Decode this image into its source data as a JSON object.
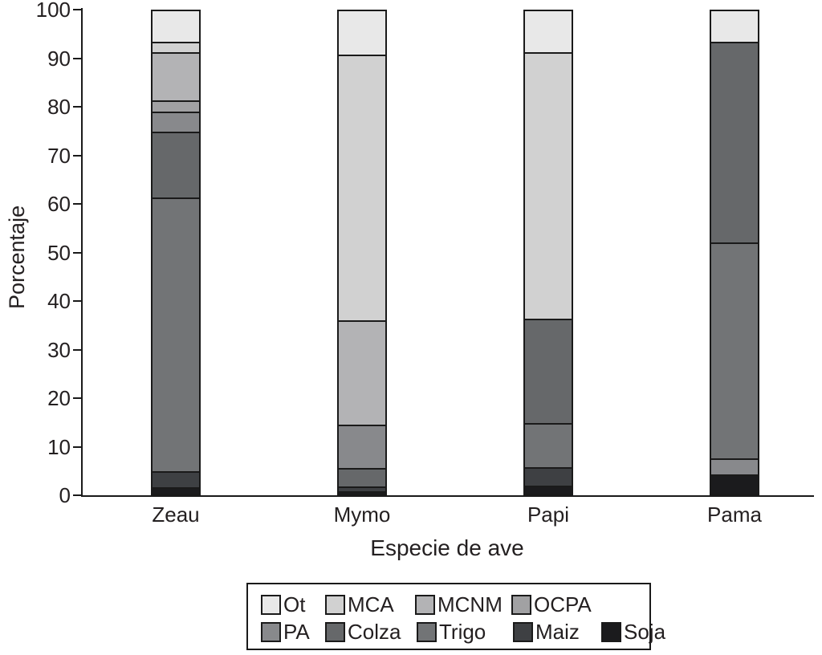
{
  "chart_data": {
    "type": "bar",
    "stacked": true,
    "title": "",
    "xlabel": "Especie de ave",
    "ylabel": "Porcentaje",
    "ylim": [
      0,
      100
    ],
    "yticks": [
      0,
      10,
      20,
      30,
      40,
      50,
      60,
      70,
      80,
      90,
      100
    ],
    "grid": "off",
    "legend_position": "bottom",
    "categories": [
      "Zeau",
      "Mymo",
      "Papi",
      "Pama"
    ],
    "series": [
      {
        "name": "Ot",
        "values": [
          6.6,
          9.2,
          8.8,
          6.6
        ]
      },
      {
        "name": "MCA",
        "values": [
          2.2,
          54.7,
          54.8,
          0
        ]
      },
      {
        "name": "MCNM",
        "values": [
          9.9,
          21.5,
          0,
          0
        ]
      },
      {
        "name": "OCPA",
        "values": [
          2.3,
          0,
          0,
          0
        ]
      },
      {
        "name": "PA",
        "values": [
          4.2,
          8.9,
          0,
          3.3
        ]
      },
      {
        "name": "Colza",
        "values": [
          13.5,
          3.8,
          21.5,
          41.3
        ]
      },
      {
        "name": "Trigo",
        "values": [
          56.3,
          0,
          9.1,
          44.5
        ]
      },
      {
        "name": "Maiz",
        "values": [
          3.3,
          1.0,
          3.8,
          0
        ]
      },
      {
        "name": "Soja",
        "values": [
          1.7,
          0.9,
          2.0,
          4.3
        ]
      }
    ],
    "bars": [
      {
        "category": "Zeau",
        "segments": [
          {
            "name": "Ot",
            "value": 6.6
          },
          {
            "name": "MCA",
            "value": 2.2
          },
          {
            "name": "MCNM",
            "value": 9.9
          },
          {
            "name": "OCPA",
            "value": 2.3
          },
          {
            "name": "PA",
            "value": 4.2
          },
          {
            "name": "Colza",
            "value": 13.5
          },
          {
            "name": "Trigo",
            "value": 56.3
          },
          {
            "name": "Maiz",
            "value": 3.3
          },
          {
            "name": "Soja",
            "value": 1.7
          }
        ]
      },
      {
        "category": "Mymo",
        "segments": [
          {
            "name": "Ot",
            "value": 9.2
          },
          {
            "name": "MCA",
            "value": 54.7
          },
          {
            "name": "MCNM",
            "value": 21.5
          },
          {
            "name": "PA",
            "value": 8.9
          },
          {
            "name": "Colza",
            "value": 3.8
          },
          {
            "name": "Maiz",
            "value": 1.0
          },
          {
            "name": "Soja",
            "value": 0.9
          }
        ]
      },
      {
        "category": "Papi",
        "segments": [
          {
            "name": "Ot",
            "value": 8.8
          },
          {
            "name": "MCA",
            "value": 54.8
          },
          {
            "name": "Colza",
            "value": 21.5
          },
          {
            "name": "Trigo",
            "value": 9.1
          },
          {
            "name": "Maiz",
            "value": 3.8
          },
          {
            "name": "Soja",
            "value": 2.0
          }
        ]
      },
      {
        "category": "Pama",
        "segments": [
          {
            "name": "Ot",
            "value": 6.6
          },
          {
            "name": "Colza",
            "value": 41.3
          },
          {
            "name": "Trigo",
            "value": 44.5
          },
          {
            "name": "PA",
            "value": 3.3
          },
          {
            "name": "Soja",
            "value": 4.3
          }
        ]
      }
    ],
    "colors": {
      "Ot": "#e8e8e8",
      "MCA": "#d1d1d1",
      "MCNM": "#b3b3b5",
      "OCPA": "#a1a1a3",
      "PA": "#88898c",
      "Colza": "#66686a",
      "Trigo": "#727476",
      "Maiz": "#3e4043",
      "Soja": "#1b1b1d"
    },
    "legend_rows": [
      [
        "Ot",
        "MCA",
        "MCNM",
        "OCPA"
      ],
      [
        "PA",
        "Colza",
        "Trigo",
        "Maiz",
        "Soja"
      ]
    ]
  }
}
